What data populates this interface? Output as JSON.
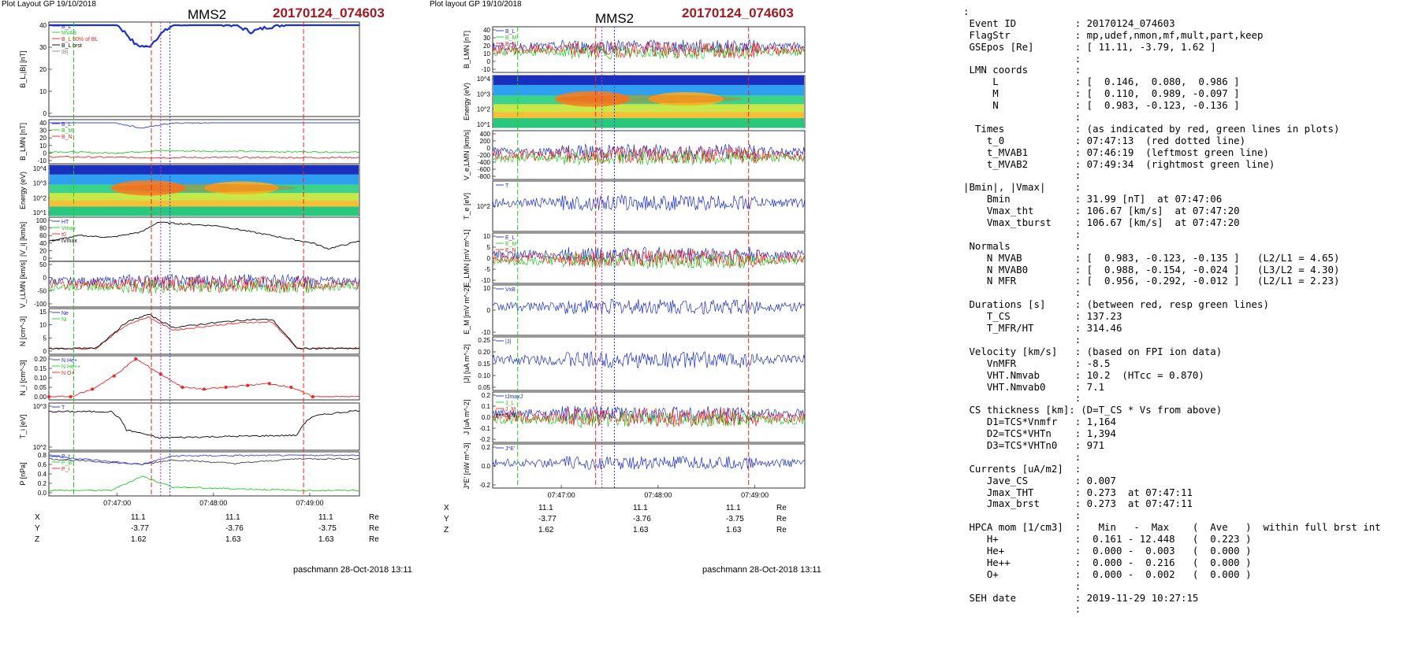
{
  "left_figure": {
    "layout_label": "Plot Layout GP 19/10/2018",
    "spacecraft": "MMS2",
    "event_id": "20170124_074603",
    "footer": "paschmann 28-Oct-2018 13:11",
    "time_ticks": [
      "07:47:00",
      "07:48:00",
      "07:49:00"
    ],
    "position_rows": [
      {
        "label": "X",
        "values": [
          "11.1",
          "11.1",
          "11.1"
        ],
        "unit": "Re"
      },
      {
        "label": "Y",
        "values": [
          "-3.77",
          "-3.76",
          "-3.75"
        ],
        "unit": "Re"
      },
      {
        "label": "Z",
        "values": [
          "1.62",
          "1.63",
          "1.63"
        ],
        "unit": "Re"
      }
    ]
  },
  "middle_figure": {
    "layout_label": "Plot layout GP 19/10/2018",
    "spacecraft": "MMS2",
    "event_id": "20170124_074603",
    "footer": "paschmann 28-Oct-2018 13:11",
    "time_ticks": [
      "07:47:00",
      "07:48:00",
      "07:49:00"
    ],
    "position_rows": [
      {
        "label": "X",
        "values": [
          "11.1",
          "11.1",
          "11.1"
        ],
        "unit": "Re"
      },
      {
        "label": "Y",
        "values": [
          "-3.77",
          "-3.76",
          "-3.75"
        ],
        "unit": "Re"
      },
      {
        "label": "Z",
        "values": [
          "1.62",
          "1.63",
          "1.63"
        ],
        "unit": "Re"
      }
    ]
  },
  "summary_lines": [
    ":",
    " Event ID          : 20170124_074603",
    " FlagStr           : mp,udef,nmon,mf,mult,part,keep",
    " GSEpos [Re]       : [ 11.11, -3.79, 1.62 ]",
    "                   :",
    " LMN coords        :",
    "     L             : [  0.146,  0.080,  0.986 ]",
    "     M             : [  0.110,  0.989, -0.097 ]",
    "     N             : [  0.983, -0.123, -0.136 ]",
    "                   :",
    "  Times            : (as indicated by red, green lines in plots)",
    "    t_0            : 07:47:13  (red dotted line)",
    "    t_MVAB1        : 07:46:19  (leftmost green line)",
    "    t_MVAB2        : 07:49:34  (rightmost green line)",
    "                   :",
    "|Bmin|, |Vmax|     :",
    "    Bmin           : 31.99 [nT]  at 07:47:06",
    "    Vmax_tht       : 106.67 [km/s]  at 07:47:20",
    "    Vmax_tburst    : 106.67 [km/s]  at 07:47:20",
    "                   :",
    " Normals           :",
    "    N MVAB         : [  0.983, -0.123, -0.135 ]   (L2/L1 = 4.65)",
    "    N MVAB0        : [  0.988, -0.154, -0.024 ]   (L3/L2 = 4.30)",
    "    N MFR          : [  0.956, -0.292, -0.012 ]   (L2/L1 = 2.23)",
    "                   :",
    " Durations [s]     : (between red, resp green lines)",
    "    T_CS           : 137.23",
    "    T_MFR/HT       : 314.46",
    "                   :",
    " Velocity [km/s]   : (based on FPI ion data)",
    "    VnMFR          : -8.5",
    "    VHT.Nmvab      : 10.2  (HTcc = 0.870)",
    "    VHT.Nmvab0     : 7.1",
    "                   :",
    " CS thickness [km]: (D=T_CS * Vs from above)",
    "    D1=TCS*Vnmfr   : 1,164",
    "    D2=TCS*VHTn    : 1,394",
    "    D3=TCS*VHTn0   : 971",
    "                   :",
    " Currents [uA/m2]  :",
    "    Jave_CS        : 0.007",
    "    Jmax_THT       : 0.273  at 07:47:11",
    "    Jmax_brst      : 0.273  at 07:47:11",
    "                   :",
    " HPCA mom [1/cm3]  :   Min   -  Max    (  Ave   )  within full brst int",
    "    H+             :  0.161 - 12.448   (  0.223 )",
    "    He+            :  0.000 -  0.003   (  0.000 )",
    "    He++           :  0.000 -  0.216   (  0.000 )",
    "    O+             :  0.000 -  0.002   (  0.000 )",
    "                   :",
    " SEH date          : 2019-11-29 10:27:15",
    "                   :"
  ],
  "chart_data": [
    {
      "type": "line",
      "figure": "left",
      "panels": [
        {
          "ylabel": "B_L,|B| [nT]",
          "yticks": [
            "0",
            "10",
            "20",
            "30",
            "40"
          ],
          "legend": [
            "B_L",
            "MVAB",
            "B_L 50% of BL",
            "B_L brst",
            "|B|"
          ],
          "series": [
            {
              "name": "B_L",
              "color": "#1a2fd0",
              "x": [
                0,
                0.1,
                0.2,
                0.25,
                0.28,
                0.32,
                0.36,
                0.4,
                0.5,
                0.6,
                0.65,
                0.7,
                0.75,
                0.8,
                0.9,
                1
              ],
              "y": [
                41,
                42,
                43,
                36,
                31,
                30,
                36,
                40,
                41,
                40,
                37,
                39,
                40,
                42,
                43,
                43
              ]
            }
          ]
        },
        {
          "ylabel": "B_LMN [nT]",
          "yticks": [
            "-10",
            "0",
            "10",
            "20",
            "30",
            "40"
          ],
          "legend": [
            "B_L",
            "B_M",
            "B_N"
          ],
          "series": [
            {
              "name": "B_L",
              "color": "#3344ff",
              "x": [
                0,
                0.2,
                0.3,
                0.4,
                1
              ],
              "y": [
                41,
                41,
                33,
                40,
                43
              ]
            },
            {
              "name": "B_M",
              "color": "#22cc22",
              "x": [
                0,
                0.2,
                0.35,
                1
              ],
              "y": [
                2,
                0,
                3,
                1
              ]
            },
            {
              "name": "B_N",
              "color": "#ee2222",
              "x": [
                0,
                0.3,
                1
              ],
              "y": [
                -5,
                -6,
                -6
              ]
            }
          ]
        },
        {
          "type": "heatmap",
          "ylabel": "Energy (eV)",
          "yticks": [
            "10^1",
            "10^2",
            "10^3",
            "10^4"
          ]
        },
        {
          "ylabel": "|V_i| [km/s]",
          "yticks": [
            "0",
            "20",
            "40",
            "60",
            "80",
            "100"
          ],
          "legend": [
            "HT",
            "Vmax",
            "t0",
            "tVmax"
          ],
          "series": [
            {
              "name": "HT",
              "color": "#000",
              "x": [
                0,
                0.1,
                0.2,
                0.3,
                0.35,
                0.45,
                0.55,
                0.65,
                0.75,
                0.85,
                0.9,
                1
              ],
              "y": [
                45,
                60,
                55,
                70,
                95,
                90,
                85,
                70,
                55,
                40,
                25,
                45
              ]
            }
          ]
        },
        {
          "ylabel": "V_i,LMN [km/s]",
          "yticks": [
            "-100",
            "-50",
            "0",
            "50"
          ]
        },
        {
          "ylabel": "N [cm^-3]",
          "yticks": [
            "0",
            "5",
            "10",
            "15"
          ],
          "legend": [
            "Ne",
            "Ni"
          ],
          "series": [
            {
              "name": "Ne",
              "color": "#ee2222",
              "x": [
                0,
                0.15,
                0.25,
                0.32,
                0.4,
                0.55,
                0.65,
                0.72,
                0.8,
                1
              ],
              "y": [
                1,
                1,
                10,
                13,
                8,
                10,
                11,
                11,
                1,
                1
              ]
            },
            {
              "name": "Ni",
              "color": "#000",
              "x": [
                0,
                0.15,
                0.25,
                0.32,
                0.4,
                0.55,
                0.65,
                0.72,
                0.8,
                1
              ],
              "y": [
                1,
                1,
                11,
                14,
                9,
                11,
                12,
                12,
                1,
                1
              ]
            }
          ]
        },
        {
          "ylabel": "N_i [cm^-3]",
          "yticks": [
            "0.00",
            "0.05",
            "0.10",
            "0.15",
            "0.20"
          ],
          "legend": [
            "N He+",
            "N He++",
            "N O+"
          ],
          "series": [
            {
              "name": "N He++",
              "color": "#ee2222",
              "x": [
                0,
                0.07,
                0.14,
                0.21,
                0.28,
                0.36,
                0.43,
                0.5,
                0.57,
                0.64,
                0.71,
                0.78,
                0.85
              ],
              "y": [
                0,
                0,
                0.04,
                0.11,
                0.2,
                0.12,
                0.05,
                0.04,
                0.05,
                0.06,
                0.07,
                0.05,
                0
              ]
            }
          ]
        },
        {
          "ylabel": "T_i [eV]",
          "yticks": [
            "10^2",
            "10^3"
          ],
          "legend": [
            "T"
          ],
          "series": [
            {
              "name": "T",
              "color": "#000",
              "x": [
                0,
                0.2,
                0.25,
                0.35,
                0.8,
                0.85,
                1
              ],
              "y": [
                1000,
                1000,
                250,
                140,
                170,
                700,
                1100
              ]
            }
          ]
        },
        {
          "ylabel": "P [nPa]",
          "yticks": [
            "0.0",
            "0.2",
            "0.4",
            "0.6",
            "0.8"
          ],
          "legend": [
            "P_t",
            "P_B",
            "P_i"
          ],
          "series": [
            {
              "name": "P_t",
              "color": "#444",
              "x": [
                0,
                0.3,
                0.4,
                0.6,
                0.8,
                1
              ],
              "y": [
                0.72,
                0.6,
                0.7,
                0.62,
                0.72,
                0.72
              ]
            },
            {
              "name": "P_B",
              "color": "#3344ff",
              "x": [
                0,
                0.3,
                0.4,
                1
              ],
              "y": [
                0.78,
                0.6,
                0.78,
                0.8
              ]
            },
            {
              "name": "P_i",
              "color": "#22cc22",
              "x": [
                0,
                0.2,
                0.3,
                0.4,
                0.8,
                1
              ],
              "y": [
                0.05,
                0.05,
                0.35,
                0.12,
                0.05,
                0.05
              ]
            }
          ]
        }
      ]
    },
    {
      "type": "line",
      "figure": "middle",
      "panels": [
        {
          "ylabel": "B_LMN [nT]",
          "yticks": [
            "-10",
            "0",
            "10",
            "20",
            "30",
            "40"
          ],
          "legend": [
            "B_L",
            "B_M",
            "B_N"
          ]
        },
        {
          "type": "heatmap",
          "ylabel": "Energy (eV)",
          "yticks": [
            "10^1",
            "10^2",
            "10^3",
            "10^4"
          ]
        },
        {
          "ylabel": "V_e,LMN [km/s]",
          "yticks": [
            "-800",
            "-600",
            "-400",
            "-200",
            "0",
            "200",
            "400"
          ]
        },
        {
          "ylabel": "T_e [eV]",
          "yticks": [
            "10^2"
          ],
          "legend": [
            "T"
          ]
        },
        {
          "ylabel": "E_LMN [mV m^-1]",
          "yticks": [
            "-10",
            "-5",
            "0",
            "5",
            "10"
          ],
          "legend": [
            "E_L",
            "E_M",
            "E_N"
          ]
        },
        {
          "ylabel": "E_M [mV m^-2]",
          "yticks": [
            "-10",
            "0",
            "10"
          ],
          "legend": [
            "VxB"
          ]
        },
        {
          "ylabel": "|J| [uA m^-2]",
          "yticks": [
            "0.05",
            "0.10",
            "0.15",
            "0.20",
            "0.25"
          ],
          "legend": [
            "|J|"
          ]
        },
        {
          "ylabel": "J [uA m^-2]",
          "yticks": [
            "-0.2",
            "-0.1",
            "0.0",
            "0.1",
            "0.2"
          ],
          "legend": [
            "tJmaxJ",
            "J_L",
            "J_M",
            "J_N"
          ]
        },
        {
          "ylabel": "J*E' [nW m^-3]",
          "yticks": [
            "-0.2",
            "0.0",
            "0.2"
          ],
          "legend": [
            "J*E'"
          ]
        }
      ]
    }
  ]
}
